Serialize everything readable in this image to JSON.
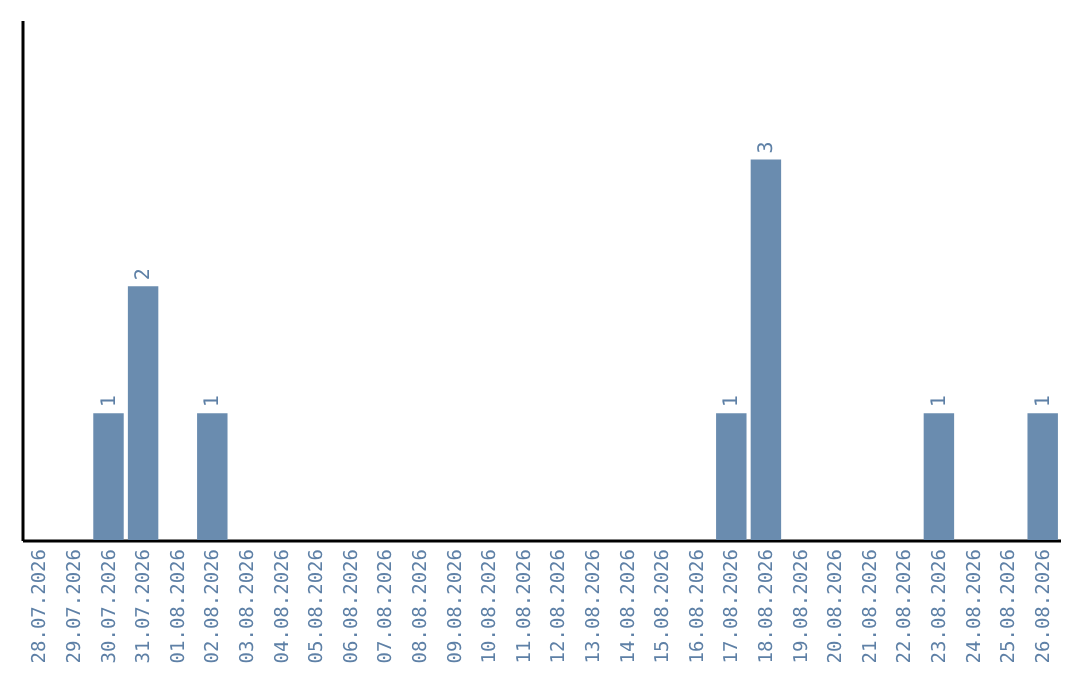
{
  "chart_data": {
    "type": "bar",
    "categories": [
      "28.07.2026",
      "29.07.2026",
      "30.07.2026",
      "31.07.2026",
      "01.08.2026",
      "02.08.2026",
      "03.08.2026",
      "04.08.2026",
      "05.08.2026",
      "06.08.2026",
      "07.08.2026",
      "08.08.2026",
      "09.08.2026",
      "10.08.2026",
      "11.08.2026",
      "12.08.2026",
      "13.08.2026",
      "14.08.2026",
      "15.08.2026",
      "16.08.2026",
      "17.08.2026",
      "18.08.2026",
      "19.08.2026",
      "20.08.2026",
      "21.08.2026",
      "22.08.2026",
      "23.08.2026",
      "24.08.2026",
      "25.08.2026",
      "26.08.2026"
    ],
    "values": [
      0,
      0,
      1,
      2,
      0,
      1,
      0,
      0,
      0,
      0,
      0,
      0,
      0,
      0,
      0,
      0,
      0,
      0,
      0,
      0,
      1,
      3,
      0,
      0,
      0,
      0,
      1,
      0,
      0,
      1
    ],
    "value_labels": [
      null,
      null,
      "1",
      "2",
      null,
      "1",
      null,
      null,
      null,
      null,
      null,
      null,
      null,
      null,
      null,
      null,
      null,
      null,
      null,
      null,
      "1",
      "3",
      null,
      null,
      null,
      null,
      "1",
      null,
      null,
      "1"
    ],
    "color": "#6a8caf",
    "ylim": [
      0,
      4.1
    ]
  }
}
